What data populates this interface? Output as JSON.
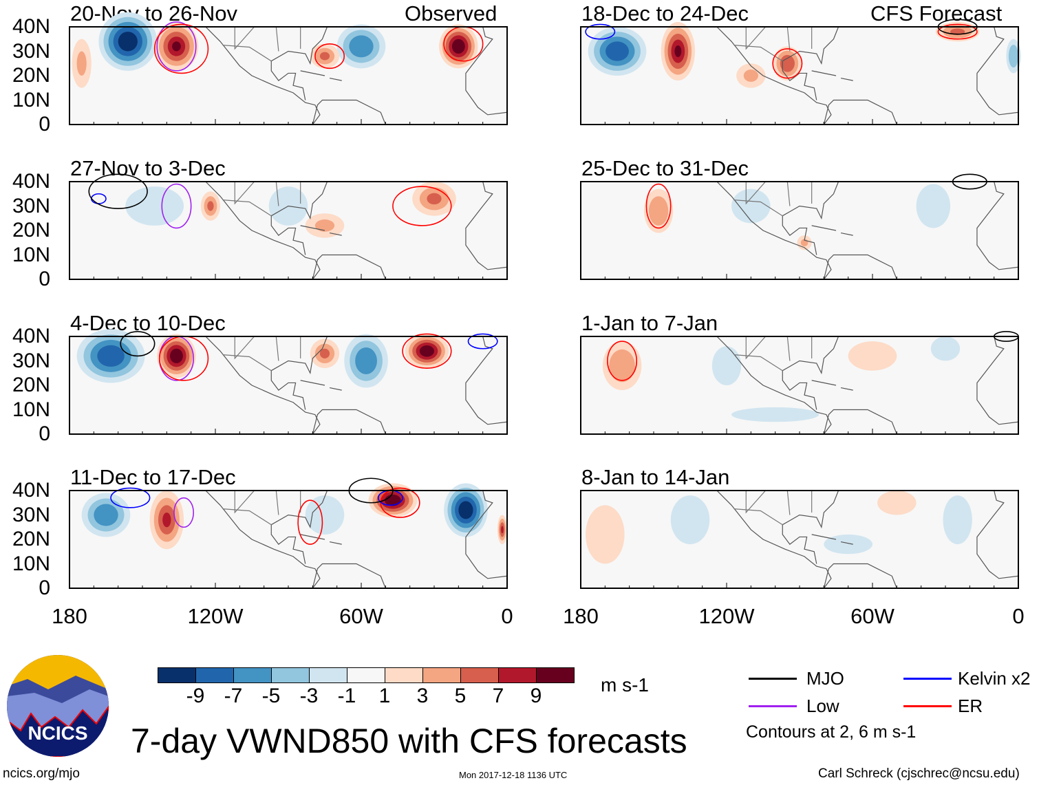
{
  "header": {
    "observed_label": "Observed",
    "forecast_label": "CFS Forecast"
  },
  "axes": {
    "lat_ticks": [
      "40N",
      "30N",
      "20N",
      "10N",
      "0"
    ],
    "lon_ticks": [
      "180",
      "120W",
      "60W",
      "0"
    ]
  },
  "panels": [
    {
      "title": "20-Nov to 26-Nov",
      "features": [
        {
          "lon": -156,
          "lat": 34,
          "v": -10,
          "rx": 12,
          "ry": 12
        },
        {
          "lon": -136,
          "lat": 32,
          "v": 9,
          "rx": 9,
          "ry": 10
        },
        {
          "lon": -60,
          "lat": 32,
          "v": -7,
          "rx": 10,
          "ry": 9
        },
        {
          "lon": -20,
          "lat": 32,
          "v": 10,
          "rx": 8,
          "ry": 9
        },
        {
          "lon": -75,
          "lat": 28,
          "v": 5,
          "rx": 6,
          "ry": 5
        },
        {
          "lon": -175,
          "lat": 25,
          "v": 3,
          "rx": 4,
          "ry": 10
        }
      ],
      "contours": [
        {
          "lon": -136,
          "lat": 32,
          "rx": 8,
          "ry": 10,
          "c": "purple"
        },
        {
          "lon": -134,
          "lat": 31,
          "rx": 11,
          "ry": 10,
          "c": "red"
        },
        {
          "lon": -73,
          "lat": 28,
          "rx": 6,
          "ry": 5,
          "c": "red"
        },
        {
          "lon": -18,
          "lat": 33,
          "rx": 8,
          "ry": 7,
          "c": "red"
        }
      ]
    },
    {
      "title": "27-Nov to 3-Dec",
      "features": [
        {
          "lon": -145,
          "lat": 30,
          "v": -3,
          "rx": 12,
          "ry": 8
        },
        {
          "lon": -30,
          "lat": 33,
          "v": 5,
          "rx": 9,
          "ry": 7
        },
        {
          "lon": -122,
          "lat": 30,
          "v": 5,
          "rx": 4,
          "ry": 6
        },
        {
          "lon": -75,
          "lat": 22,
          "v": 3,
          "rx": 8,
          "ry": 5
        },
        {
          "lon": -90,
          "lat": 30,
          "v": -3,
          "rx": 8,
          "ry": 8
        }
      ],
      "contours": [
        {
          "lon": -136,
          "lat": 30,
          "rx": 6,
          "ry": 9,
          "c": "purple"
        },
        {
          "lon": -168,
          "lat": 33,
          "rx": 3,
          "ry": 2,
          "c": "blue"
        },
        {
          "lon": -160,
          "lat": 36,
          "rx": 12,
          "ry": 7,
          "c": "black"
        },
        {
          "lon": -35,
          "lat": 30,
          "rx": 12,
          "ry": 8,
          "c": "red"
        }
      ]
    },
    {
      "title": "4-Dec to 10-Dec",
      "features": [
        {
          "lon": -163,
          "lat": 32,
          "v": -8,
          "rx": 14,
          "ry": 11
        },
        {
          "lon": -136,
          "lat": 32,
          "v": 10,
          "rx": 8,
          "ry": 9
        },
        {
          "lon": -58,
          "lat": 30,
          "v": -6,
          "rx": 9,
          "ry": 11
        },
        {
          "lon": -33,
          "lat": 34,
          "v": 10,
          "rx": 9,
          "ry": 7
        },
        {
          "lon": -75,
          "lat": 33,
          "v": 5,
          "rx": 6,
          "ry": 6
        }
      ],
      "contours": [
        {
          "lon": -136,
          "lat": 31,
          "rx": 7,
          "ry": 9,
          "c": "purple"
        },
        {
          "lon": -133,
          "lat": 31,
          "rx": 10,
          "ry": 9,
          "c": "red"
        },
        {
          "lon": -33,
          "lat": 34,
          "rx": 10,
          "ry": 7,
          "c": "red"
        },
        {
          "lon": -10,
          "lat": 38,
          "rx": 6,
          "ry": 3,
          "c": "blue"
        },
        {
          "lon": -152,
          "lat": 37,
          "rx": 7,
          "ry": 5,
          "c": "black"
        }
      ]
    },
    {
      "title": "11-Dec to 17-Dec",
      "features": [
        {
          "lon": -165,
          "lat": 30,
          "v": -6,
          "rx": 10,
          "ry": 9
        },
        {
          "lon": -140,
          "lat": 28,
          "v": 7,
          "rx": 7,
          "ry": 12
        },
        {
          "lon": -47,
          "lat": 36,
          "v": 10,
          "rx": 10,
          "ry": 7
        },
        {
          "lon": -17,
          "lat": 32,
          "v": -10,
          "rx": 9,
          "ry": 11
        },
        {
          "lon": -75,
          "lat": 30,
          "v": -3,
          "rx": 8,
          "ry": 8
        },
        {
          "lon": -2,
          "lat": 24,
          "v": 7,
          "rx": 2,
          "ry": 6
        }
      ],
      "contours": [
        {
          "lon": -133,
          "lat": 31,
          "rx": 4,
          "ry": 6,
          "c": "purple"
        },
        {
          "lon": -155,
          "lat": 37,
          "rx": 8,
          "ry": 4,
          "c": "blue"
        },
        {
          "lon": -81,
          "lat": 27,
          "rx": 5,
          "ry": 9,
          "c": "red"
        },
        {
          "lon": -44,
          "lat": 35,
          "rx": 8,
          "ry": 6,
          "c": "red"
        },
        {
          "lon": -48,
          "lat": 37,
          "rx": 5,
          "ry": 3,
          "c": "blue"
        },
        {
          "lon": -56,
          "lat": 40,
          "rx": 9,
          "ry": 5,
          "c": "black"
        }
      ]
    },
    {
      "title": "18-Dec to 24-Dec",
      "features": [
        {
          "lon": -165,
          "lat": 30,
          "v": -8,
          "rx": 12,
          "ry": 10
        },
        {
          "lon": -140,
          "lat": 30,
          "v": 9,
          "rx": 7,
          "ry": 12
        },
        {
          "lon": -95,
          "lat": 25,
          "v": 6,
          "rx": 6,
          "ry": 7
        },
        {
          "lon": -25,
          "lat": 38,
          "v": 5,
          "rx": 9,
          "ry": 4
        },
        {
          "lon": -2,
          "lat": 28,
          "v": -5,
          "rx": 3,
          "ry": 7
        },
        {
          "lon": -110,
          "lat": 20,
          "v": 3,
          "rx": 6,
          "ry": 5
        }
      ],
      "contours": [
        {
          "lon": -95,
          "lat": 25,
          "rx": 6,
          "ry": 6,
          "c": "red"
        },
        {
          "lon": -25,
          "lat": 38,
          "rx": 8,
          "ry": 3,
          "c": "red"
        },
        {
          "lon": -172,
          "lat": 38,
          "rx": 6,
          "ry": 3,
          "c": "blue"
        },
        {
          "lon": -25,
          "lat": 40,
          "rx": 8,
          "ry": 3,
          "c": "black"
        }
      ]
    },
    {
      "title": "25-Dec to 31-Dec",
      "features": [
        {
          "lon": -148,
          "lat": 28,
          "v": 4,
          "rx": 6,
          "ry": 9
        },
        {
          "lon": -110,
          "lat": 30,
          "v": -2,
          "rx": 8,
          "ry": 7
        },
        {
          "lon": -35,
          "lat": 30,
          "v": -2,
          "rx": 7,
          "ry": 9
        },
        {
          "lon": -88,
          "lat": 15,
          "v": 3,
          "rx": 3,
          "ry": 3
        }
      ],
      "contours": [
        {
          "lon": -148,
          "lat": 30,
          "rx": 5,
          "ry": 9,
          "c": "red"
        },
        {
          "lon": -20,
          "lat": 40,
          "rx": 7,
          "ry": 3,
          "c": "black"
        }
      ]
    },
    {
      "title": "1-Jan to 7-Jan",
      "features": [
        {
          "lon": -163,
          "lat": 28,
          "v": 4,
          "rx": 8,
          "ry": 10
        },
        {
          "lon": -120,
          "lat": 28,
          "v": -2,
          "rx": 6,
          "ry": 8
        },
        {
          "lon": -60,
          "lat": 32,
          "v": 2,
          "rx": 10,
          "ry": 6
        },
        {
          "lon": -30,
          "lat": 35,
          "v": -3,
          "rx": 6,
          "ry": 5
        },
        {
          "lon": -100,
          "lat": 8,
          "v": -2,
          "rx": 18,
          "ry": 3
        }
      ],
      "contours": [
        {
          "lon": -163,
          "lat": 30,
          "rx": 6,
          "ry": 8,
          "c": "red"
        },
        {
          "lon": -5,
          "lat": 40,
          "rx": 5,
          "ry": 2,
          "c": "black"
        }
      ]
    },
    {
      "title": "8-Jan to 14-Jan",
      "features": [
        {
          "lon": -170,
          "lat": 22,
          "v": 2,
          "rx": 8,
          "ry": 12
        },
        {
          "lon": -135,
          "lat": 28,
          "v": -2,
          "rx": 8,
          "ry": 10
        },
        {
          "lon": -50,
          "lat": 35,
          "v": 2,
          "rx": 8,
          "ry": 5
        },
        {
          "lon": -25,
          "lat": 28,
          "v": -2,
          "rx": 6,
          "ry": 10
        },
        {
          "lon": -70,
          "lat": 18,
          "v": -2,
          "rx": 10,
          "ry": 4
        }
      ],
      "contours": []
    }
  ],
  "colorbar": {
    "colors": [
      "#08306b",
      "#2166ac",
      "#4393c3",
      "#92c5de",
      "#d1e5f0",
      "#f7f7f7",
      "#fddbc7",
      "#f4a582",
      "#d6604d",
      "#b2182b",
      "#67001f"
    ],
    "labels": [
      "-9",
      "-7",
      "-5",
      "-3",
      "-1",
      "1",
      "3",
      "5",
      "7",
      "9"
    ],
    "units": "m s-1"
  },
  "legend": {
    "mjo": "MJO",
    "kelvin": "Kelvin x2",
    "low": "Low",
    "er": "ER",
    "contours_note": "Contours at 2, 6 m s-1",
    "colors": {
      "black": "#000000",
      "blue": "#0000ff",
      "purple": "#a020f0",
      "red": "#ff0000"
    }
  },
  "footer": {
    "title": "7-day VWND850 with CFS forecasts",
    "url": "ncics.org/mjo",
    "timestamp": "Mon 2017-12-18 1136 UTC",
    "credit": "Carl Schreck (cjschrec@ncsu.edu)",
    "logo_text": "NCICS"
  }
}
